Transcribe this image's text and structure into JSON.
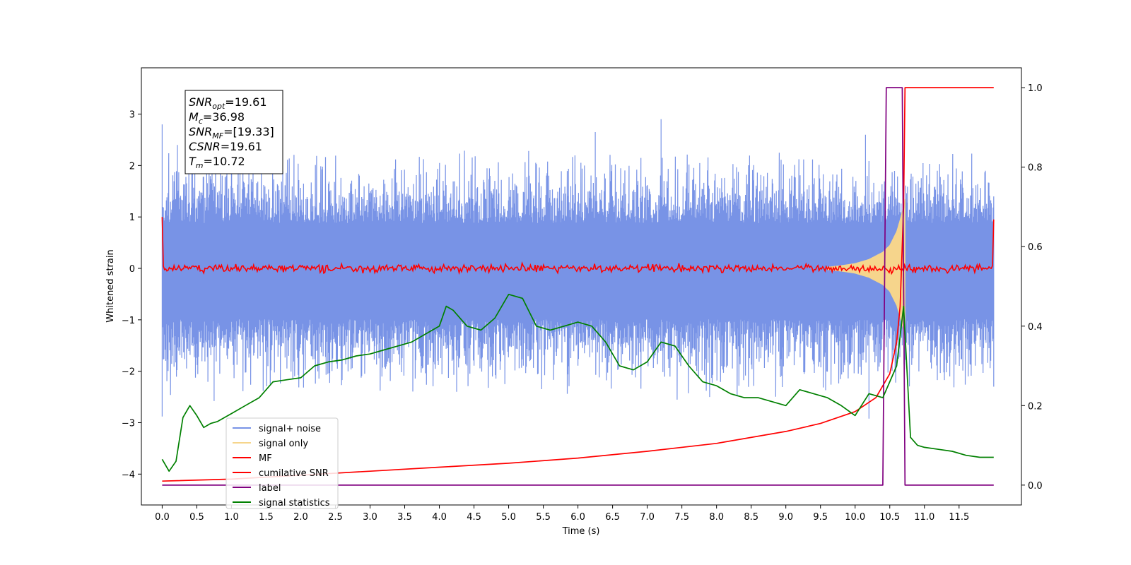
{
  "chart_data": {
    "type": "line",
    "xlabel": "Time (s)",
    "ylabel": "Whitened strain",
    "x_ticks": [
      "0.0",
      "0.5",
      "1.0",
      "1.5",
      "2.0",
      "2.5",
      "3.0",
      "3.5",
      "4.0",
      "4.5",
      "5.0",
      "5.5",
      "6.0",
      "6.5",
      "7.0",
      "7.5",
      "8.0",
      "8.5",
      "9.0",
      "9.5",
      "10.0",
      "10.5",
      "11.0",
      "11.5"
    ],
    "y_left_ticks": [
      "3",
      "2",
      "1",
      "0",
      "−1",
      "−2",
      "−3",
      "−4"
    ],
    "y_right_ticks": [
      "1.0",
      "0.8",
      "0.6",
      "0.4",
      "0.2",
      "0.0"
    ],
    "xlim": [
      -0.3,
      12.4
    ],
    "ylim_left": [
      -4.6,
      3.9
    ],
    "ylim_right": [
      -0.05,
      1.05
    ],
    "grid": false,
    "legend_position": "lower-left",
    "legend": [
      {
        "label": "signal+ noise",
        "color": "#7893e6"
      },
      {
        "label": "signal only",
        "color": "#f6d58c"
      },
      {
        "label": "MF",
        "color": "#ff0000"
      },
      {
        "label": "cumilative SNR",
        "color": "#ff0000"
      },
      {
        "label": "label",
        "color": "#800080"
      },
      {
        "label": "signal statistics",
        "color": "#008000"
      }
    ],
    "annotation": {
      "lines": [
        {
          "sym": "SNR",
          "sub": "opt",
          "rest": "=19.61"
        },
        {
          "sym": "M",
          "sub": "c",
          "rest": "=36.98"
        },
        {
          "sym": "SNR",
          "sub": "MF",
          "rest": "=[19.33]"
        },
        {
          "sym": "CSNR",
          "sub": "",
          "rest": "=19.61"
        },
        {
          "sym": "T",
          "sub": "m",
          "rest": "=10.72"
        }
      ]
    },
    "series": [
      {
        "name": "signal+ noise",
        "axis": "left",
        "color": "#7893e6",
        "style": "noise band",
        "x_range": [
          0.0,
          12.0
        ],
        "band_low": -1.8,
        "band_high": 1.6,
        "extremes": [
          {
            "x": 0.0,
            "y": -2.88
          },
          {
            "x": 0.0,
            "y": 2.8
          },
          {
            "x": 0.22,
            "y": 2.4
          },
          {
            "x": 0.75,
            "y": -2.58
          },
          {
            "x": 1.0,
            "y": 2.7
          },
          {
            "x": 4.25,
            "y": -2.4
          },
          {
            "x": 6.25,
            "y": 2.65
          },
          {
            "x": 7.2,
            "y": 2.9
          },
          {
            "x": 7.9,
            "y": -2.5
          },
          {
            "x": 10.15,
            "y": 2.6
          },
          {
            "x": 10.2,
            "y": -2.92
          },
          {
            "x": 12.0,
            "y": -2.3
          }
        ]
      },
      {
        "name": "signal only",
        "axis": "left",
        "color": "#f6d58c",
        "style": "chirp",
        "x": [
          9.6,
          9.8,
          10.0,
          10.2,
          10.4,
          10.5,
          10.6,
          10.65,
          10.7,
          10.72
        ],
        "amplitude": [
          0.03,
          0.06,
          0.1,
          0.18,
          0.32,
          0.45,
          0.72,
          0.95,
          1.2,
          1.35
        ]
      },
      {
        "name": "MF",
        "axis": "left",
        "color": "#ff0000",
        "style": "noise",
        "x_range": [
          0.0,
          12.0
        ],
        "center": 0.0,
        "noise_amplitude": 0.06,
        "edges": [
          {
            "x": 0.0,
            "y": 1.0
          },
          {
            "x": 12.0,
            "y": 0.95
          }
        ]
      },
      {
        "name": "cumilative SNR",
        "axis": "right",
        "color": "#ff0000",
        "x": [
          0.0,
          1.0,
          2.0,
          3.0,
          4.0,
          5.0,
          6.0,
          7.0,
          8.0,
          9.0,
          9.5,
          10.0,
          10.3,
          10.5,
          10.6,
          10.65,
          10.7,
          10.72,
          12.0
        ],
        "y": [
          0.01,
          0.015,
          0.025,
          0.035,
          0.045,
          0.055,
          0.068,
          0.085,
          0.105,
          0.135,
          0.155,
          0.185,
          0.22,
          0.28,
          0.36,
          0.45,
          0.7,
          1.0,
          1.0
        ]
      },
      {
        "name": "label",
        "axis": "right",
        "color": "#800080",
        "x": [
          0.0,
          10.4,
          10.45,
          10.68,
          10.72,
          12.0
        ],
        "y": [
          0.0,
          0.0,
          1.0,
          1.0,
          0.0,
          0.0
        ]
      },
      {
        "name": "signal statistics",
        "axis": "right",
        "color": "#008000",
        "x": [
          0.0,
          0.1,
          0.2,
          0.3,
          0.4,
          0.5,
          0.6,
          0.7,
          0.8,
          1.0,
          1.2,
          1.4,
          1.6,
          1.8,
          2.0,
          2.2,
          2.4,
          2.6,
          2.8,
          3.0,
          3.2,
          3.4,
          3.6,
          3.8,
          4.0,
          4.1,
          4.2,
          4.4,
          4.6,
          4.8,
          5.0,
          5.2,
          5.4,
          5.6,
          5.8,
          6.0,
          6.2,
          6.4,
          6.6,
          6.8,
          7.0,
          7.2,
          7.4,
          7.6,
          7.8,
          8.0,
          8.2,
          8.4,
          8.6,
          8.8,
          9.0,
          9.2,
          9.4,
          9.6,
          9.8,
          10.0,
          10.2,
          10.4,
          10.5,
          10.6,
          10.7,
          10.8,
          10.9,
          11.0,
          11.2,
          11.4,
          11.6,
          11.8,
          12.0
        ],
        "y": [
          0.065,
          0.035,
          0.06,
          0.17,
          0.2,
          0.175,
          0.145,
          0.155,
          0.16,
          0.18,
          0.2,
          0.22,
          0.26,
          0.265,
          0.27,
          0.3,
          0.31,
          0.315,
          0.325,
          0.33,
          0.34,
          0.35,
          0.36,
          0.38,
          0.4,
          0.45,
          0.44,
          0.4,
          0.39,
          0.42,
          0.48,
          0.47,
          0.4,
          0.39,
          0.4,
          0.41,
          0.4,
          0.36,
          0.3,
          0.29,
          0.31,
          0.36,
          0.35,
          0.3,
          0.26,
          0.25,
          0.23,
          0.22,
          0.22,
          0.21,
          0.2,
          0.24,
          0.23,
          0.22,
          0.2,
          0.175,
          0.23,
          0.22,
          0.26,
          0.3,
          0.45,
          0.12,
          0.1,
          0.095,
          0.09,
          0.085,
          0.075,
          0.07,
          0.07
        ]
      }
    ]
  }
}
